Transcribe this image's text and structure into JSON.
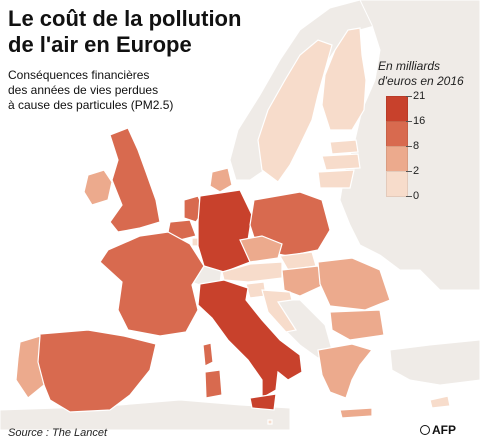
{
  "title_line1": "Le coût de la pollution",
  "title_line2": "de l'air en Europe",
  "subtitle_line1": "Conséquences financières",
  "subtitle_line2": "des années de vies perdues",
  "subtitle_line3": "à cause des particules (PM2.5)",
  "legend": {
    "title_line1": "En milliards",
    "title_line2": "d'euros en 2016",
    "bins": [
      {
        "label": "21",
        "color": "#c8412c"
      },
      {
        "label": "16",
        "color": "#d86a4f"
      },
      {
        "label": "8",
        "color": "#ecaa8d"
      },
      {
        "label": "2",
        "color": "#f7dccb"
      },
      {
        "label": "0",
        "color": "#f2ece6"
      }
    ]
  },
  "source": "Source : The Lancet",
  "logo": "AFP",
  "colors": {
    "sea": "#ffffff",
    "non_eu": "#efebe7",
    "cat_top": "#c8412c",
    "cat_high": "#d86a4f",
    "cat_mid": "#ecaa8d",
    "cat_low": "#f7dccb",
    "border": "#ffffff"
  }
}
